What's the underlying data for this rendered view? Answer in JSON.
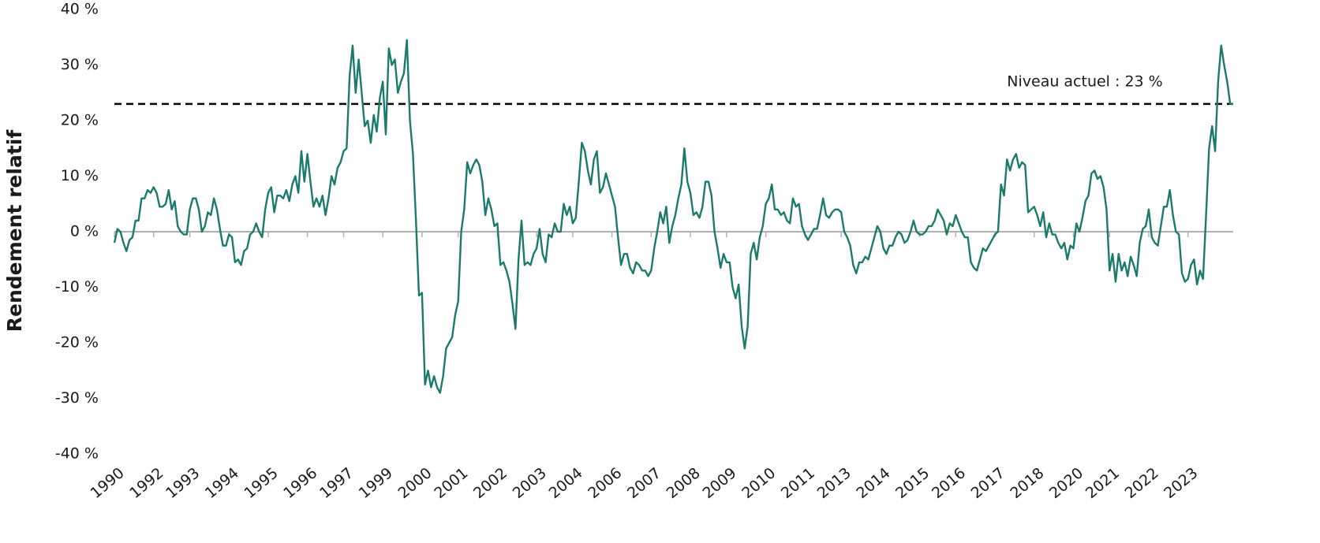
{
  "chart_data": {
    "type": "line",
    "y_label": "Rendement relatif",
    "color": "#1b7a6c",
    "ylim": [
      -40,
      40
    ],
    "yticks": [
      {
        "value": -40,
        "label": "-40 %"
      },
      {
        "value": -30,
        "label": "-30 %"
      },
      {
        "value": -20,
        "label": "-20 %"
      },
      {
        "value": -10,
        "label": "-10 %"
      },
      {
        "value": 0,
        "label": "0 %"
      },
      {
        "value": 10,
        "label": "10 %"
      },
      {
        "value": 20,
        "label": "20 %"
      },
      {
        "value": 30,
        "label": "30 %"
      },
      {
        "value": 40,
        "label": "40 %"
      }
    ],
    "reference_line": {
      "value": 23,
      "label": "Niveau actuel : 23 %"
    },
    "categories": [
      "1990",
      null,
      null,
      null,
      null,
      null,
      null,
      null,
      null,
      null,
      null,
      null,
      null,
      "1992",
      null,
      null,
      null,
      null,
      null,
      null,
      null,
      null,
      null,
      null,
      null,
      "1993",
      null,
      null,
      null,
      null,
      null,
      null,
      null,
      null,
      null,
      null,
      null,
      null,
      "1994",
      null,
      null,
      null,
      null,
      null,
      null,
      null,
      null,
      null,
      null,
      null,
      null,
      "1995",
      null,
      null,
      null,
      null,
      null,
      null,
      null,
      null,
      null,
      null,
      null,
      null,
      "1996",
      null,
      null,
      null,
      null,
      null,
      null,
      null,
      null,
      null,
      null,
      null,
      "1997",
      null,
      null,
      null,
      null,
      null,
      null,
      null,
      null,
      null,
      null,
      null,
      null,
      "1999",
      null,
      null,
      null,
      null,
      null,
      null,
      null,
      null,
      null,
      null,
      null,
      null,
      "2000",
      null,
      null,
      null,
      null,
      null,
      null,
      null,
      null,
      null,
      null,
      null,
      "2001",
      null,
      null,
      null,
      null,
      null,
      null,
      null,
      null,
      null,
      null,
      null,
      null,
      "2002",
      null,
      null,
      null,
      null,
      null,
      null,
      null,
      null,
      null,
      null,
      null,
      null,
      "2003",
      null,
      null,
      null,
      null,
      null,
      null,
      null,
      null,
      null,
      null,
      null,
      "2004",
      null,
      null,
      null,
      null,
      null,
      null,
      null,
      null,
      null,
      null,
      null,
      null,
      "2006",
      null,
      null,
      null,
      null,
      null,
      null,
      null,
      null,
      null,
      null,
      null,
      null,
      "2007",
      null,
      null,
      null,
      null,
      null,
      null,
      null,
      null,
      null,
      null,
      null,
      null,
      "2008",
      null,
      null,
      null,
      null,
      null,
      null,
      null,
      null,
      null,
      null,
      null,
      "2009",
      null,
      null,
      null,
      null,
      null,
      null,
      null,
      null,
      null,
      null,
      null,
      null,
      "2010",
      null,
      null,
      null,
      null,
      null,
      null,
      null,
      null,
      null,
      null,
      null,
      null,
      "2011",
      null,
      null,
      null,
      null,
      null,
      null,
      null,
      null,
      null,
      null,
      null,
      "2013",
      null,
      null,
      null,
      null,
      null,
      null,
      null,
      null,
      null,
      null,
      null,
      null,
      "2014",
      null,
      null,
      null,
      null,
      null,
      null,
      null,
      null,
      null,
      null,
      null,
      null,
      "2015",
      null,
      null,
      null,
      null,
      null,
      null,
      null,
      null,
      null,
      null,
      null,
      "2016",
      null,
      null,
      null,
      null,
      null,
      null,
      null,
      null,
      null,
      null,
      null,
      null,
      "2017",
      null,
      null,
      null,
      null,
      null,
      null,
      null,
      null,
      null,
      null,
      null,
      null,
      "2018",
      null,
      null,
      null,
      null,
      null,
      null,
      null,
      null,
      null,
      null,
      null,
      null,
      "2020",
      null,
      null,
      null,
      null,
      null,
      null,
      null,
      null,
      null,
      null,
      null,
      "2021",
      null,
      null,
      null,
      null,
      null,
      null,
      null,
      null,
      null,
      null,
      null,
      null,
      "2022",
      null,
      null,
      null,
      null,
      null,
      null,
      null,
      null,
      null,
      null,
      null,
      null,
      "2023",
      null,
      null,
      null,
      null,
      null,
      null,
      null,
      null,
      null,
      null,
      null,
      null,
      null,
      null,
      null
    ],
    "values": [
      -2,
      0.5,
      0,
      -2,
      -3.5,
      -1.5,
      -1,
      2,
      2,
      6,
      6,
      7.5,
      7,
      8,
      7,
      4.5,
      4.5,
      5,
      7.5,
      4,
      5.5,
      1,
      0,
      -0.5,
      -0.5,
      4,
      6,
      6,
      4,
      0,
      1,
      3.5,
      3,
      6,
      4,
      0.5,
      -2.5,
      -2.5,
      -0.5,
      -1,
      -5.5,
      -5,
      -6,
      -3.5,
      -3,
      -0.5,
      0,
      1.5,
      0,
      -1,
      4,
      7,
      8,
      3.5,
      6.5,
      6.5,
      6,
      7.5,
      5.5,
      8.5,
      10,
      7,
      14.5,
      9,
      14,
      9,
      4.5,
      6,
      4.5,
      6.5,
      3,
      6,
      10,
      8.5,
      11.5,
      12.5,
      14.5,
      15,
      28,
      33.5,
      25,
      31,
      25,
      19,
      20,
      16,
      21,
      18,
      24,
      27,
      17.5,
      33,
      30,
      31,
      25,
      27,
      28.5,
      34.5,
      20,
      14,
      2,
      -11.5,
      -11,
      -27.5,
      -25,
      -28,
      -26,
      -28,
      -29,
      -26,
      -21,
      -20,
      -19,
      -15,
      -12.5,
      0,
      4,
      12.5,
      10.5,
      12,
      13,
      12,
      9,
      3,
      6,
      4,
      1,
      1.5,
      -6,
      -5.5,
      -7,
      -9,
      -13,
      -17.5,
      -5,
      2,
      -6,
      -5.5,
      -6,
      -4,
      -3,
      0.5,
      -4,
      -5.5,
      -0.5,
      -1,
      1.5,
      0,
      0,
      5,
      3,
      4.5,
      1.5,
      2.5,
      9,
      16,
      14.5,
      11,
      8.5,
      13,
      14.5,
      7,
      8,
      10.5,
      8.5,
      6.5,
      4.5,
      -1,
      -6,
      -4,
      -4,
      -6.5,
      -7.5,
      -5.5,
      -6,
      -7,
      -7,
      -8,
      -7,
      -3,
      0,
      3.5,
      1.5,
      4.5,
      -2,
      1,
      3,
      6,
      8.5,
      15,
      9,
      7,
      3,
      3.5,
      2.5,
      4.5,
      9,
      9,
      6.5,
      0,
      -3,
      -6.5,
      -4,
      -5.5,
      -5.5,
      -10,
      -12,
      -9.5,
      -17,
      -21,
      -17,
      -4,
      -2,
      -5,
      -1,
      1,
      5,
      6,
      8.5,
      4,
      4,
      3,
      3.5,
      2,
      1.5,
      6,
      4.5,
      5,
      1,
      -0.5,
      -1.5,
      -0.5,
      0.5,
      0.5,
      3,
      6,
      3,
      2.5,
      3.5,
      4,
      4,
      3.5,
      0,
      -1,
      -2.5,
      -6,
      -7.5,
      -5.5,
      -5.5,
      -4.5,
      -5,
      -3,
      -1,
      1,
      0,
      -3,
      -4,
      -2.5,
      -2.5,
      -1,
      0,
      -0.5,
      -2,
      -1.5,
      0,
      2,
      0,
      -0.5,
      -0.5,
      0,
      1,
      1,
      2,
      4,
      3,
      2,
      -0.5,
      1.5,
      1,
      3,
      1.5,
      0,
      -1,
      -1,
      -5.5,
      -6.5,
      -7,
      -5,
      -3,
      -3.5,
      -2.5,
      -1.5,
      -0.5,
      0,
      8.5,
      6.5,
      13,
      11,
      13,
      14,
      11.5,
      12.5,
      12,
      3.5,
      4,
      4.5,
      3,
      1,
      3.5,
      -1,
      1.5,
      -0.5,
      -0.5,
      -2,
      -3,
      -2,
      -5,
      -2.5,
      -3,
      1.5,
      0,
      2.5,
      5.5,
      6.5,
      10.5,
      11,
      9.5,
      10,
      8,
      4,
      -7,
      -4,
      -9,
      -4,
      -7,
      -5.5,
      -8,
      -4.5,
      -6,
      -8,
      -2,
      0.5,
      1,
      4,
      -1,
      -2,
      -2.5,
      1,
      4.5,
      4.5,
      7.5,
      3,
      0,
      -0.5,
      -7.5,
      -9,
      -8.5,
      -6,
      -5,
      -9.5,
      -7,
      -8.5,
      3,
      15,
      19,
      14.5,
      27,
      33.5,
      30,
      27,
      23,
      23
    ]
  }
}
